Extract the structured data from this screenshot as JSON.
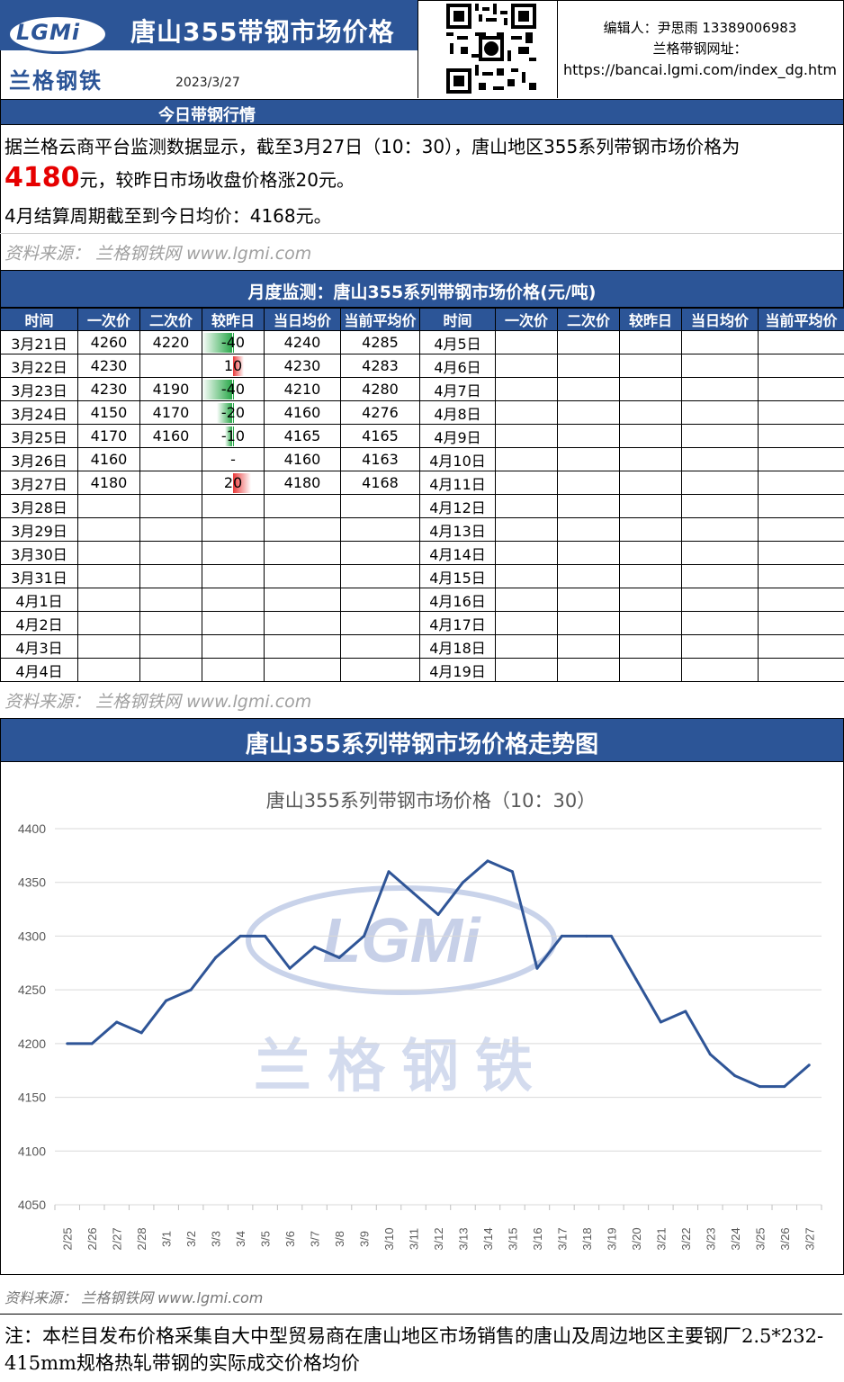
{
  "header": {
    "title": "唐山355带钢市场价格",
    "logo_text": "LGMi",
    "logo_cn": "兰格钢铁",
    "date": "2023/3/27",
    "editor_line": "编辑人：尹思雨 13389006983",
    "site_label": "兰格带钢网址：",
    "site_url": "https://bancai.lgmi.com/index_dg.htm"
  },
  "today": {
    "section_title": "今日带钢行情",
    "line1": "据兰格云商平台监测数据显示，截至3月27日（10：30），唐山地区355系列带钢市场价格为",
    "price": "4180",
    "line2_suffix": "元，较昨日市场收盘价格涨20元。",
    "line3": "4月结算周期截至到今日均价：4168元。",
    "source": "资料来源： 兰格钢铁网 www.lgmi.com"
  },
  "monthly": {
    "section_title": "月度监测：唐山355系列带钢市场价格(元/吨)",
    "headers": [
      "时间",
      "一次价",
      "二次价",
      "较昨日",
      "当日均价",
      "当前平均价",
      "时间",
      "一次价",
      "二次价",
      "较昨日",
      "当日均价",
      "当前平均价"
    ],
    "rows": [
      {
        "date": "3月21日",
        "p1": "4260",
        "p2": "4220",
        "chg": "-40",
        "chg_val": -40,
        "avg": "4240",
        "cur": "4285",
        "date2": "4月5日"
      },
      {
        "date": "3月22日",
        "p1": "4230",
        "p2": "",
        "chg": "10",
        "chg_val": 10,
        "avg": "4230",
        "cur": "4283",
        "date2": "4月6日"
      },
      {
        "date": "3月23日",
        "p1": "4230",
        "p2": "4190",
        "chg": "-40",
        "chg_val": -40,
        "avg": "4210",
        "cur": "4280",
        "date2": "4月7日"
      },
      {
        "date": "3月24日",
        "p1": "4150",
        "p2": "4170",
        "chg": "-20",
        "chg_val": -20,
        "avg": "4160",
        "cur": "4276",
        "date2": "4月8日"
      },
      {
        "date": "3月25日",
        "p1": "4170",
        "p2": "4160",
        "chg": "-10",
        "chg_val": -10,
        "avg": "4165",
        "cur": "4165",
        "date2": "4月9日"
      },
      {
        "date": "3月26日",
        "p1": "4160",
        "p2": "",
        "chg": "-",
        "chg_val": 0,
        "avg": "4160",
        "cur": "4163",
        "date2": "4月10日"
      },
      {
        "date": "3月27日",
        "p1": "4180",
        "p2": "",
        "chg": "20",
        "chg_val": 20,
        "avg": "4180",
        "cur": "4168",
        "date2": "4月11日"
      },
      {
        "date": "3月28日",
        "p1": "",
        "p2": "",
        "chg": "",
        "chg_val": 0,
        "avg": "",
        "cur": "",
        "date2": "4月12日"
      },
      {
        "date": "3月29日",
        "p1": "",
        "p2": "",
        "chg": "",
        "chg_val": 0,
        "avg": "",
        "cur": "",
        "date2": "4月13日"
      },
      {
        "date": "3月30日",
        "p1": "",
        "p2": "",
        "chg": "",
        "chg_val": 0,
        "avg": "",
        "cur": "",
        "date2": "4月14日"
      },
      {
        "date": "3月31日",
        "p1": "",
        "p2": "",
        "chg": "",
        "chg_val": 0,
        "avg": "",
        "cur": "",
        "date2": "4月15日"
      },
      {
        "date": "4月1日",
        "p1": "",
        "p2": "",
        "chg": "",
        "chg_val": 0,
        "avg": "",
        "cur": "",
        "date2": "4月16日"
      },
      {
        "date": "4月2日",
        "p1": "",
        "p2": "",
        "chg": "",
        "chg_val": 0,
        "avg": "",
        "cur": "",
        "date2": "4月17日"
      },
      {
        "date": "4月3日",
        "p1": "",
        "p2": "",
        "chg": "",
        "chg_val": 0,
        "avg": "",
        "cur": "",
        "date2": "4月18日"
      },
      {
        "date": "4月4日",
        "p1": "",
        "p2": "",
        "chg": "",
        "chg_val": 0,
        "avg": "",
        "cur": "",
        "date2": "4月19日"
      }
    ],
    "source": "资料来源： 兰格钢铁网 www.lgmi.com",
    "bar_colors": {
      "negative": "#2aa84a",
      "positive": "#ea3a3a"
    }
  },
  "trend": {
    "section_title": "唐山355系列带钢市场价格走势图",
    "source": "资料来源： 兰格钢铁网 www.lgmi.com",
    "watermark_text": "LGMi",
    "watermark_cn": "兰格钢铁"
  },
  "chart_data": {
    "type": "line",
    "title": "唐山355系列带钢市场价格（10：30）",
    "x": [
      "2/25",
      "2/26",
      "2/27",
      "2/28",
      "3/1",
      "3/2",
      "3/3",
      "3/4",
      "3/5",
      "3/6",
      "3/7",
      "3/8",
      "3/9",
      "3/10",
      "3/11",
      "3/12",
      "3/13",
      "3/14",
      "3/15",
      "3/16",
      "3/17",
      "3/18",
      "3/19",
      "3/20",
      "3/21",
      "3/22",
      "3/23",
      "3/24",
      "3/25",
      "3/26",
      "3/27"
    ],
    "series": [
      {
        "values": [
          4200,
          4200,
          4220,
          4210,
          4240,
          4250,
          4280,
          4300,
          4300,
          4270,
          4290,
          4280,
          4300,
          4360,
          4340,
          4320,
          4350,
          4370,
          4360,
          4270,
          4300,
          4300,
          4300,
          4260,
          4220,
          4230,
          4190,
          4170,
          4160,
          4160,
          4180
        ],
        "color": "#2f5597"
      }
    ],
    "ylim": [
      4050,
      4400
    ],
    "yticks": [
      "4050",
      "4100",
      "4150",
      "4200",
      "4250",
      "4300",
      "4350",
      "4400"
    ],
    "grid": true,
    "legend": "none"
  },
  "footer": {
    "note": "注：本栏目发布价格采集自大中型贸易商在唐山地区市场销售的唐山及周边地区主要钢厂2.5*232-415mm规格热轧带钢的实际成交价格均价"
  }
}
